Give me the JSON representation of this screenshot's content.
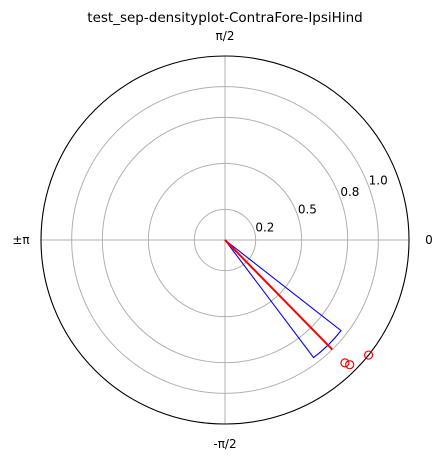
{
  "chart_data": {
    "type": "polar",
    "title": "test_sep-densityplot-ContraFore-IpsiHind",
    "angular_ticks": [
      {
        "label": "0",
        "angle_deg": 0
      },
      {
        "label": "π/2",
        "angle_deg": 90
      },
      {
        "label": "±π",
        "angle_deg": 180
      },
      {
        "label": "-π/2",
        "angle_deg": -90
      }
    ],
    "radial_ticks": [
      {
        "label": "0.2",
        "r": 0.2
      },
      {
        "label": "0.5",
        "r": 0.5
      },
      {
        "label": "0.8",
        "r": 0.8
      },
      {
        "label": "1.0",
        "r": 1.0
      }
    ],
    "rlim": [
      0,
      1.2
    ],
    "radial_label_angle_deg": 22.5,
    "grid": true,
    "colors": {
      "grid": "#b0b0b0",
      "frame": "#000000",
      "sector": "#0000ff",
      "mean_line": "#ff0000",
      "points": "#ff0000"
    },
    "sector": {
      "angle_from_deg": -53,
      "angle_to_deg": -38,
      "r": 0.96
    },
    "mean_vector": {
      "angle_deg": -45.6,
      "r": 1.0
    },
    "points": [
      {
        "angle_deg": -45.0,
        "r": 1.15
      },
      {
        "angle_deg": -45.7,
        "r": 1.12
      },
      {
        "angle_deg": -38.7,
        "r": 1.2
      }
    ]
  }
}
